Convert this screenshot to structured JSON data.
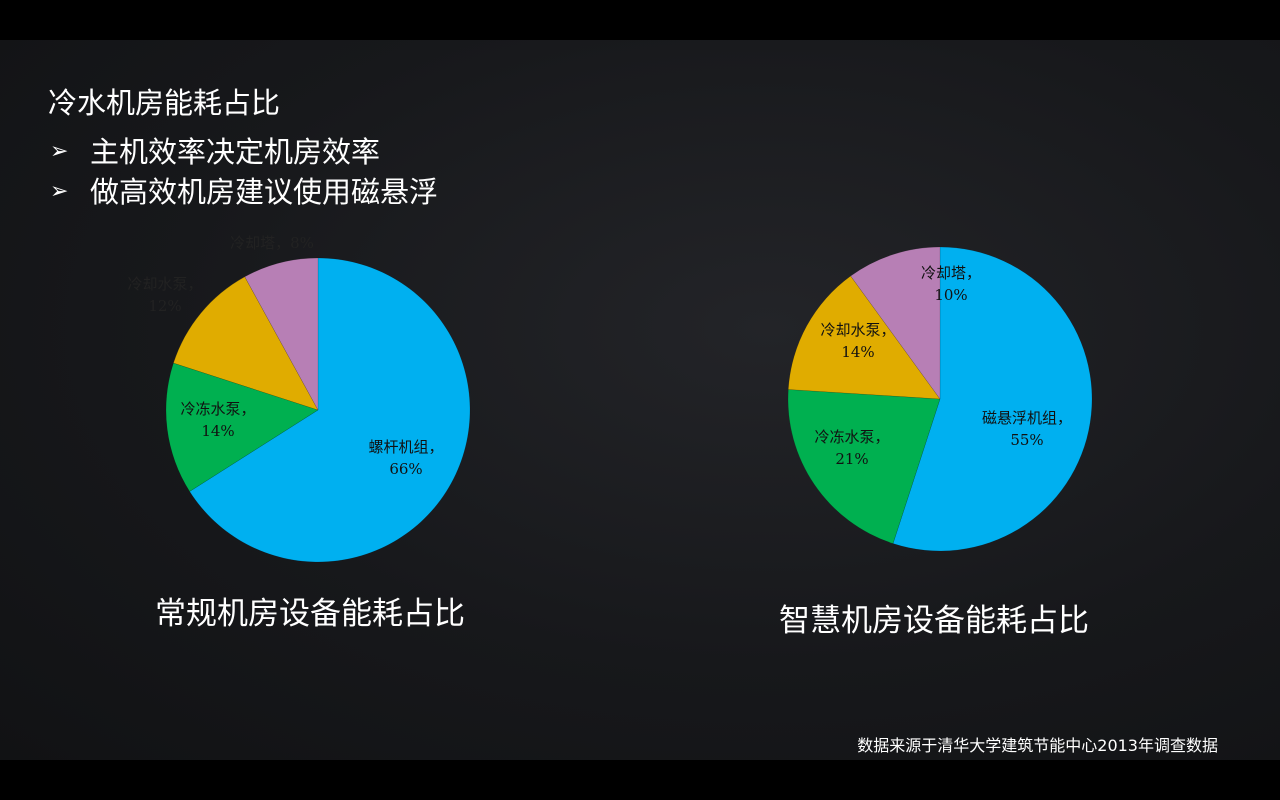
{
  "title": "冷水机房能耗占比",
  "bullets": [
    {
      "icon": "arrow-bullet-icon",
      "text": "主机效率决定机房效率"
    },
    {
      "icon": "arrow-bullet-icon",
      "text": "做高效机房建议使用磁悬浮"
    }
  ],
  "source": "数据来源于清华大学建筑节能中心2013年调查数据",
  "chart_data": [
    {
      "type": "pie",
      "title": "常规机房设备能耗占比",
      "categories": [
        "螺杆机组",
        "冷冻水泵",
        "冷却水泵",
        "冷却塔"
      ],
      "values": [
        66,
        14,
        12,
        8
      ],
      "labels": [
        "螺杆机组，",
        "冷冻水泵，",
        "冷却水泵，",
        "冷却塔，8%"
      ],
      "value_labels": [
        "66%",
        "14%",
        "12%",
        ""
      ],
      "colors": [
        "#00b0f0",
        "#00b050",
        "#e0ac00",
        "#b77fb5"
      ]
    },
    {
      "type": "pie",
      "title": "智慧机房设备能耗占比",
      "categories": [
        "磁悬浮机组",
        "冷冻水泵",
        "冷却水泵",
        "冷却塔"
      ],
      "values": [
        55,
        21,
        14,
        10
      ],
      "labels": [
        "磁悬浮机组，",
        "冷冻水泵，",
        "冷却水泵，",
        "冷却塔，"
      ],
      "value_labels": [
        "55%",
        "21%",
        "14%",
        "10%"
      ],
      "colors": [
        "#00b0f0",
        "#00b050",
        "#e0ac00",
        "#b77fb5"
      ]
    }
  ]
}
